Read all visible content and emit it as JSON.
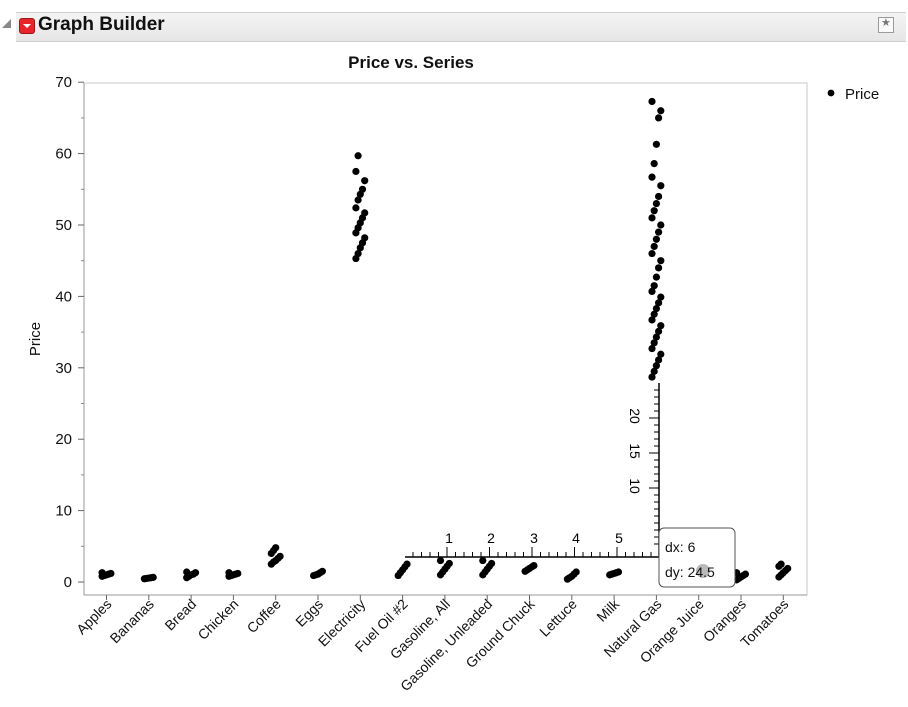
{
  "window": {
    "title": "Graph Builder"
  },
  "chart_data": {
    "type": "scatter",
    "title": "Price vs. Series",
    "xlabel": "",
    "ylabel": "Price",
    "ylim": [
      0,
      70
    ],
    "yticks": [
      0,
      10,
      20,
      30,
      40,
      50,
      60,
      70
    ],
    "grid": false,
    "legend": {
      "entries": [
        "Price"
      ],
      "placement": "right"
    },
    "categories": [
      "Apples",
      "Bananas",
      "Bread",
      "Chicken",
      "Coffee",
      "Eggs",
      "Electricity",
      "Fuel Oil #2",
      "Gasoline, All",
      "Gasoline, Unleaded",
      "Ground Chuck",
      "Lettuce",
      "Milk",
      "Natural Gas",
      "Orange Juice",
      "Oranges",
      "Tomatoes"
    ],
    "series": [
      {
        "name": "Price",
        "points": [
          {
            "category": "Apples",
            "values": [
              0.8,
              0.9,
              1.0,
              1.1,
              1.2,
              1.3
            ]
          },
          {
            "category": "Bananas",
            "values": [
              0.45,
              0.5,
              0.55,
              0.6,
              0.65
            ]
          },
          {
            "category": "Bread",
            "values": [
              0.6,
              0.8,
              1.0,
              1.1,
              1.3,
              1.4
            ]
          },
          {
            "category": "Chicken",
            "values": [
              0.8,
              0.9,
              1.0,
              1.1,
              1.2,
              1.3
            ]
          },
          {
            "category": "Coffee",
            "values": [
              2.5,
              2.8,
              3.0,
              3.3,
              3.6,
              4.0,
              4.4,
              4.8
            ]
          },
          {
            "category": "Eggs",
            "values": [
              0.9,
              1.0,
              1.1,
              1.3,
              1.5
            ]
          },
          {
            "category": "Electricity",
            "values": [
              45.3,
              46.0,
              46.8,
              47.5,
              48.2,
              48.9,
              49.6,
              50.3,
              51.0,
              51.7,
              52.4,
              53.5,
              54.3,
              55.0,
              56.2,
              57.5,
              59.7
            ]
          },
          {
            "category": "Fuel Oil #2",
            "values": [
              0.9,
              1.3,
              1.7,
              2.1,
              2.5
            ]
          },
          {
            "category": "Gasoline, All",
            "values": [
              1.0,
              1.4,
              1.8,
              2.2,
              2.6,
              3.0
            ]
          },
          {
            "category": "Gasoline, Unleaded",
            "values": [
              1.0,
              1.4,
              1.8,
              2.2,
              2.6,
              3.0
            ]
          },
          {
            "category": "Ground Chuck",
            "values": [
              1.5,
              1.7,
              1.9,
              2.1,
              2.3
            ]
          },
          {
            "category": "Lettuce",
            "values": [
              0.4,
              0.6,
              0.8,
              1.1,
              1.4
            ]
          },
          {
            "category": "Milk",
            "values": [
              1.0,
              1.1,
              1.2,
              1.3,
              1.4
            ]
          },
          {
            "category": "Natural Gas",
            "values": [
              28.7,
              29.5,
              30.3,
              31.1,
              31.9,
              32.7,
              33.5,
              34.3,
              35.1,
              35.9,
              36.7,
              37.5,
              38.3,
              39.1,
              39.9,
              40.7,
              41.5,
              42.7,
              44.0,
              45.0,
              46.0,
              47.0,
              48.0,
              49.0,
              50.0,
              51.0,
              52.0,
              53.0,
              54.0,
              55.5,
              56.7,
              58.6,
              61.3,
              65.0,
              66.0,
              67.3
            ]
          },
          {
            "category": "Orange Juice",
            "values": []
          },
          {
            "category": "Oranges",
            "values": [
              0.3,
              0.5,
              0.7,
              0.9,
              1.1,
              1.3
            ]
          },
          {
            "category": "Tomatoes",
            "values": [
              0.7,
              1.0,
              1.3,
              1.6,
              1.9,
              2.2,
              2.5
            ]
          }
        ]
      }
    ]
  },
  "measure_tool": {
    "h_ticks": [
      "1",
      "2",
      "3",
      "4",
      "5"
    ],
    "v_ticks": [
      "10",
      "15",
      "20"
    ],
    "dx": "dx: 6",
    "dy": "dy: 24.5"
  }
}
